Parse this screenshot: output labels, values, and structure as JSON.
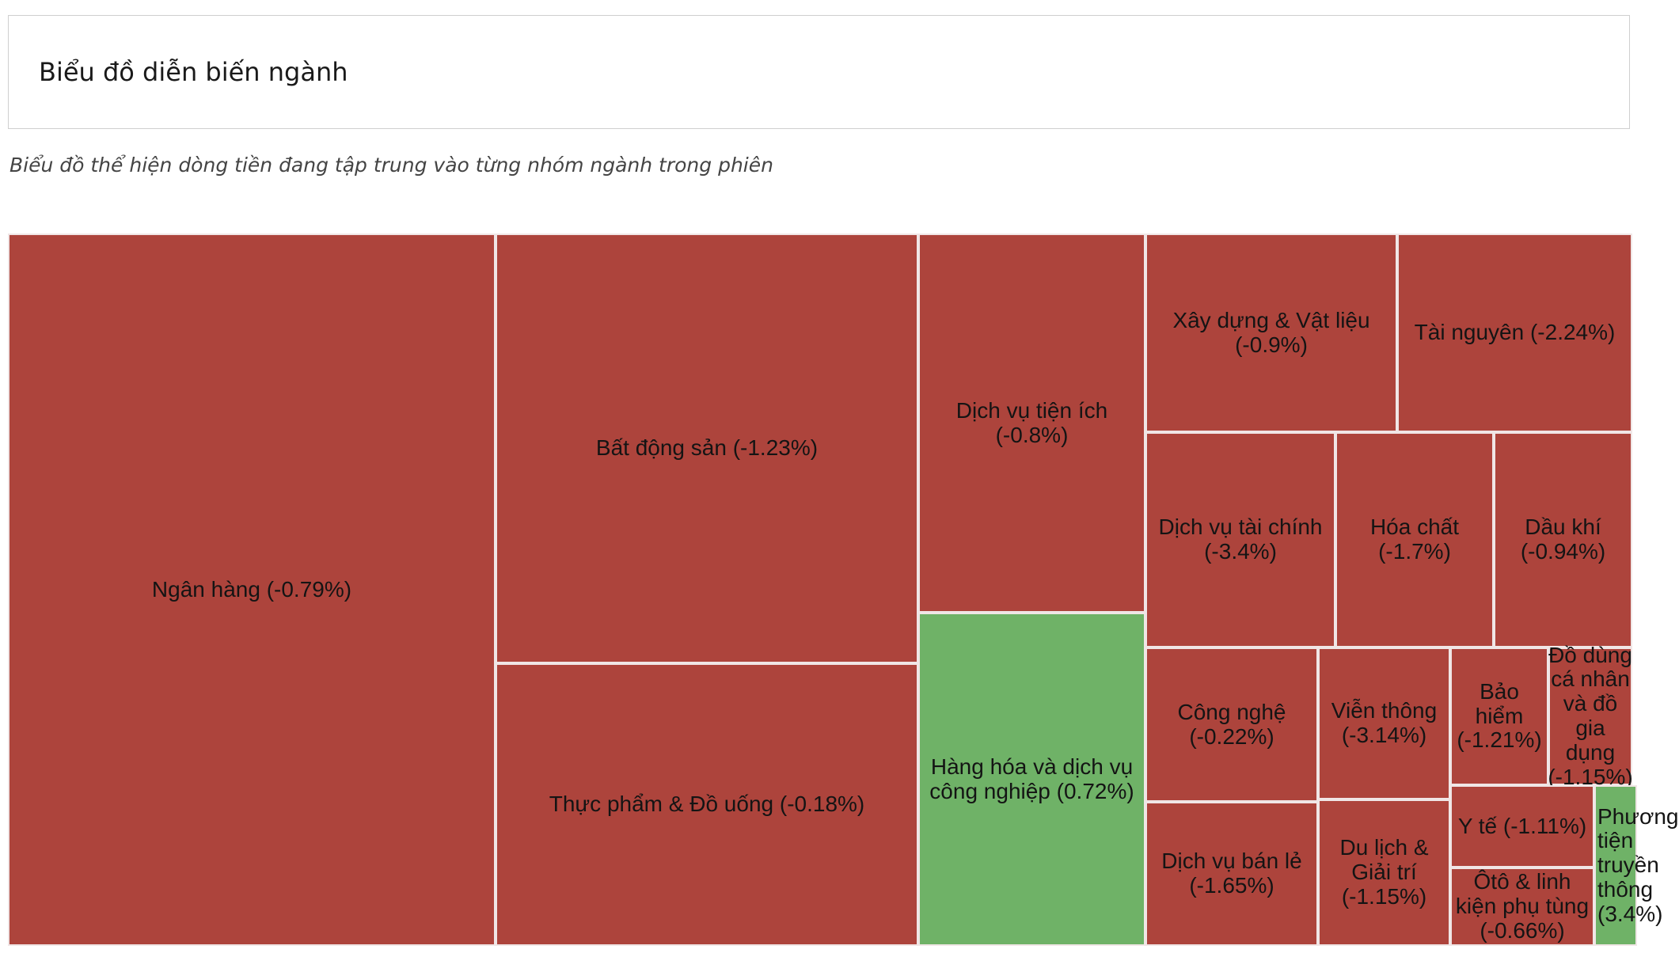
{
  "header": {
    "title": "Biểu đồ diễn biến ngành"
  },
  "subtitle": "Biểu đồ thể hiện dòng tiền đang tập trung vào từng nhóm ngành trong phiên",
  "colors": {
    "down": "#ad443c",
    "up": "#6fb267",
    "border": "#f0e6e6"
  },
  "chart_data": {
    "type": "treemap",
    "items": [
      {
        "name": "Ngân hàng",
        "change": -0.79,
        "label": "Ngân hàng (-0.79%)"
      },
      {
        "name": "Bất động sản",
        "change": -1.23,
        "label": "Bất động sản (-1.23%)"
      },
      {
        "name": "Thực phẩm & Đồ uống",
        "change": -0.18,
        "label": "Thực phẩm & Đồ uống (-0.18%)"
      },
      {
        "name": "Dịch vụ tiện ích",
        "change": -0.8,
        "label": "Dịch vụ tiện ích (-0.8%)"
      },
      {
        "name": "Hàng hóa và dịch vụ công nghiệp",
        "change": 0.72,
        "label": "Hàng hóa và dịch vụ công nghiệp (0.72%)"
      },
      {
        "name": "Xây dựng & Vật liệu",
        "change": -0.9,
        "label": "Xây dựng & Vật liệu (-0.9%)"
      },
      {
        "name": "Tài nguyên",
        "change": -2.24,
        "label": "Tài nguyên (-2.24%)"
      },
      {
        "name": "Dịch vụ tài chính",
        "change": -3.4,
        "label": "Dịch vụ tài chính (-3.4%)"
      },
      {
        "name": "Hóa chất",
        "change": -1.7,
        "label": "Hóa chất (-1.7%)"
      },
      {
        "name": "Dầu khí",
        "change": -0.94,
        "label": "Dầu khí (-0.94%)"
      },
      {
        "name": "Công nghệ",
        "change": -0.22,
        "label": "Công nghệ (-0.22%)"
      },
      {
        "name": "Viễn thông",
        "change": -3.14,
        "label": "Viễn thông (-3.14%)"
      },
      {
        "name": "Bảo hiểm",
        "change": -1.21,
        "label": "Bảo hiểm (-1.21%)"
      },
      {
        "name": "Đồ dùng cá nhân và đồ gia dụng",
        "change": -1.15,
        "label": "Đồ dùng cá nhân và đồ gia dụng (-1.15%)"
      },
      {
        "name": "Dịch vụ bán lẻ",
        "change": -1.65,
        "label": "Dịch vụ bán lẻ (-1.65%)"
      },
      {
        "name": "Du lịch & Giải trí",
        "change": -1.15,
        "label": "Du lịch & Giải trí (-1.15%)"
      },
      {
        "name": "Y tế",
        "change": -1.11,
        "label": "Y tế (-1.11%)"
      },
      {
        "name": "Ôtô & linh kiện phụ tùng",
        "change": -0.66,
        "label": "Ôtô & linh kiện phụ tùng (-0.66%)"
      },
      {
        "name": "Phương tiện truyền thông",
        "change": 3.4,
        "label": "Phương tiện truyền thông (3.4%)"
      }
    ]
  }
}
